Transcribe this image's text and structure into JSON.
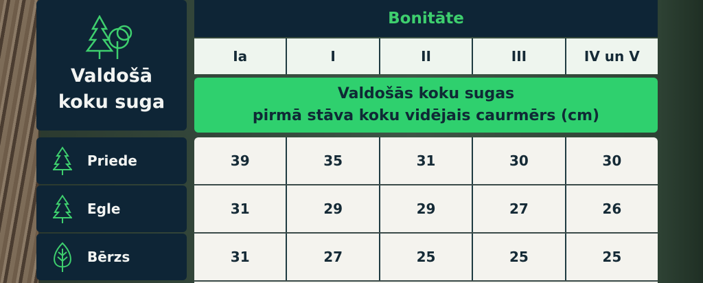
{
  "row_header": {
    "title_line1": "Valdošā",
    "title_line2": "koku suga",
    "icon": "conifer-and-deciduous-trees-icon"
  },
  "group_header": "Bonitāte",
  "columns": [
    "Ia",
    "I",
    "II",
    "III",
    "IV un V"
  ],
  "subheader": {
    "line1": "Valdošās koku sugas",
    "line2": "pirmā stāva koku vidējais caurmērs (cm)"
  },
  "rows": [
    {
      "species": "Priede",
      "icon": "conifer-icon",
      "values": [
        "39",
        "35",
        "31",
        "30",
        "30"
      ]
    },
    {
      "species": "Egle",
      "icon": "conifer-icon",
      "values": [
        "31",
        "29",
        "29",
        "27",
        "26"
      ]
    },
    {
      "species": "Bērzs",
      "icon": "leaf-icon",
      "values": [
        "31",
        "27",
        "25",
        "25",
        "25"
      ]
    }
  ],
  "colors": {
    "dark": "#0e2536",
    "green": "#2fd06e",
    "accent": "#3ecf6e"
  }
}
